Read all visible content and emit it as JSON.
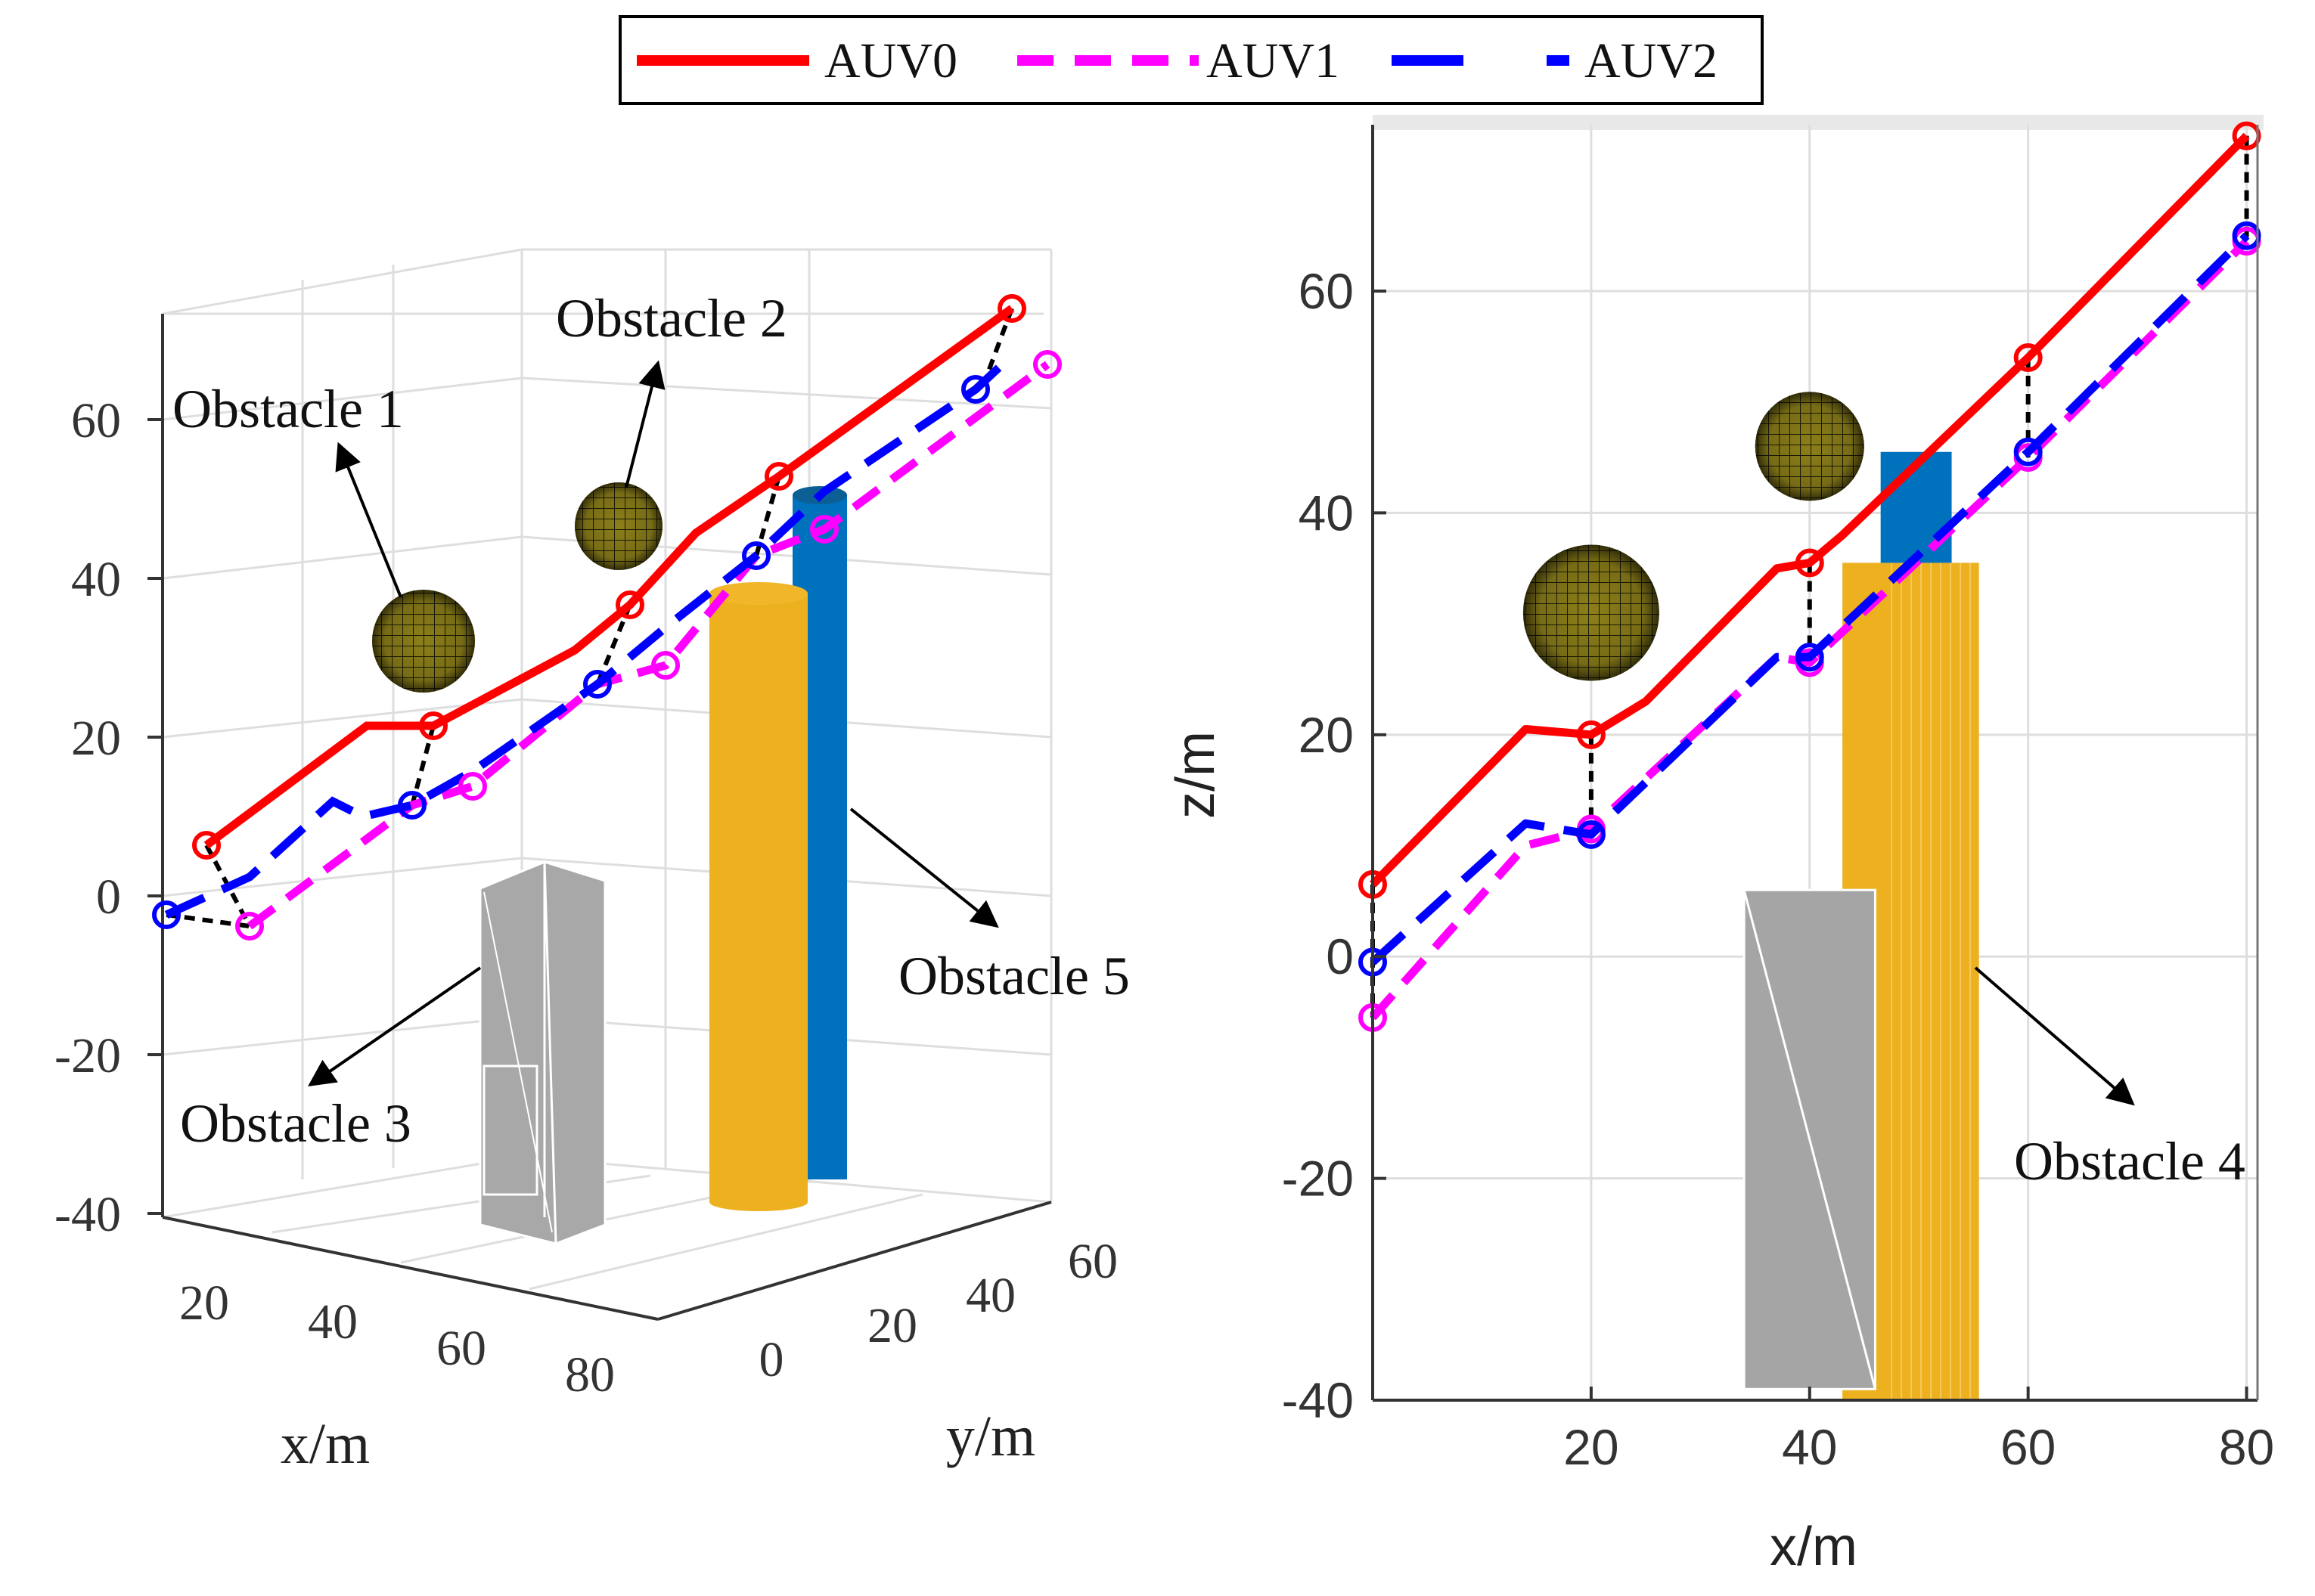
{
  "legend": [
    {
      "name": "AUV0",
      "color": "#ff0000",
      "dash": "solid"
    },
    {
      "name": "AUV1",
      "color": "#ff00ff",
      "dash": "dashed"
    },
    {
      "name": "AUV2",
      "color": "#0000ff",
      "dash": "dashed"
    }
  ],
  "colors": {
    "sphere": "#8a7d18",
    "cylinder_orange": "#edb120",
    "cylinder_blue": "#0072bd",
    "box_gray": "#a5a5a5",
    "formation_link": "#000000"
  },
  "annotations": {
    "obstacle1": "Obstacle 1",
    "obstacle2": "Obstacle 2",
    "obstacle3": "Obstacle 3",
    "obstacle4": "Obstacle 4",
    "obstacle5": "Obstacle 5"
  },
  "chart_data": [
    {
      "type": "line",
      "view": "3d",
      "xlabel": "x/m",
      "ylabel": "y/m",
      "zlabel": "",
      "x_ticks": [
        "20",
        "40",
        "60",
        "80"
      ],
      "y_ticks": [
        "0",
        "20",
        "40",
        "60"
      ],
      "z_ticks": [
        "60",
        "40",
        "20",
        "0",
        "-20",
        "-40"
      ],
      "zlim": [
        -40,
        70
      ],
      "grid": true,
      "series": [
        {
          "name": "AUV0",
          "x": [
            0,
            20,
            40,
            60,
            80
          ],
          "z": [
            6,
            20,
            36,
            53,
            73
          ]
        },
        {
          "name": "AUV1",
          "x": [
            0,
            20,
            40,
            60,
            80
          ],
          "z": [
            -5,
            12,
            28,
            45,
            64
          ]
        },
        {
          "name": "AUV2",
          "x": [
            0,
            20,
            40,
            60,
            80
          ],
          "z": [
            0,
            11,
            26,
            45,
            65
          ]
        }
      ]
    },
    {
      "type": "line",
      "view": "x-z",
      "xlabel": "x/m",
      "ylabel": "z/m",
      "xlim": [
        0,
        81
      ],
      "ylim": [
        -40,
        75
      ],
      "x_ticks": [
        20,
        40,
        60,
        80
      ],
      "y_ticks": [
        60,
        40,
        20,
        0,
        -20,
        -40
      ],
      "grid": true,
      "series": [
        {
          "name": "AUV0",
          "x": [
            0,
            14,
            20,
            25,
            37,
            40,
            43,
            60,
            80
          ],
          "y": [
            6.5,
            20.5,
            20,
            23,
            35,
            35.5,
            38,
            54,
            74
          ]
        },
        {
          "name": "AUV1",
          "x": [
            0,
            14,
            20,
            37,
            40,
            60,
            80
          ],
          "y": [
            -5.5,
            10,
            11.5,
            27,
            26.5,
            45,
            64.5
          ]
        },
        {
          "name": "AUV2",
          "x": [
            0,
            14,
            20,
            37,
            40,
            60,
            80
          ],
          "y": [
            -0.5,
            12,
            11,
            27,
            27,
            45.5,
            65
          ]
        }
      ]
    }
  ]
}
